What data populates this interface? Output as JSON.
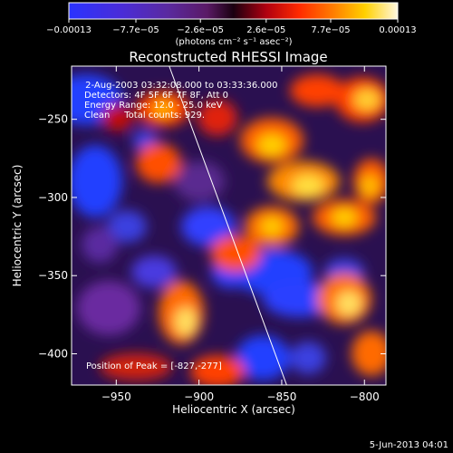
{
  "chart_data": {
    "type": "heatmap",
    "title": "Reconstructed RHESSI Image",
    "xlabel": "Heliocentric X (arcsec)",
    "ylabel": "Heliocentric Y (arcsec)",
    "xlim": [
      -977,
      -787
    ],
    "ylim": [
      -420,
      -216
    ],
    "x_ticks": [
      -950,
      -900,
      -850,
      -800
    ],
    "x_tick_labels": [
      "−950",
      "−900",
      "−850",
      "−800"
    ],
    "y_ticks": [
      -250,
      -300,
      -350,
      -400
    ],
    "y_tick_labels": [
      "−250",
      "−300",
      "−350",
      "−400"
    ],
    "colorbar": {
      "ticks": [
        -0.00013,
        -7.7e-05,
        -2.6e-05,
        2.6e-05,
        7.7e-05,
        0.00013
      ],
      "tick_labels": [
        "−0.00013",
        "−7.7e−05",
        "−2.6e−05",
        "2.6e−05",
        "7.7e−05",
        "0.00013"
      ],
      "unit": "(photons cm⁻² s⁻¹ asec⁻²)",
      "range": [
        -0.00013,
        0.00013
      ]
    },
    "annotations": [
      " 2-Aug-2003 03:32:08.000 to 03:33:36.000",
      "Detectors: 4F 5F 6F 7F 8F, Att 0",
      "Energy Range: 12.0 - 25.0 keV",
      "Clean     Total counts: 929."
    ],
    "peak_label": "Position of Peak = [-827,-277]",
    "peak_position": [
      -827,
      -277
    ],
    "limb_line": {
      "x": [
        -918,
        -847
      ],
      "y": [
        -216,
        -420
      ]
    },
    "grid": false
  },
  "footer": {
    "date": "5-Jun-2013 04:01"
  }
}
